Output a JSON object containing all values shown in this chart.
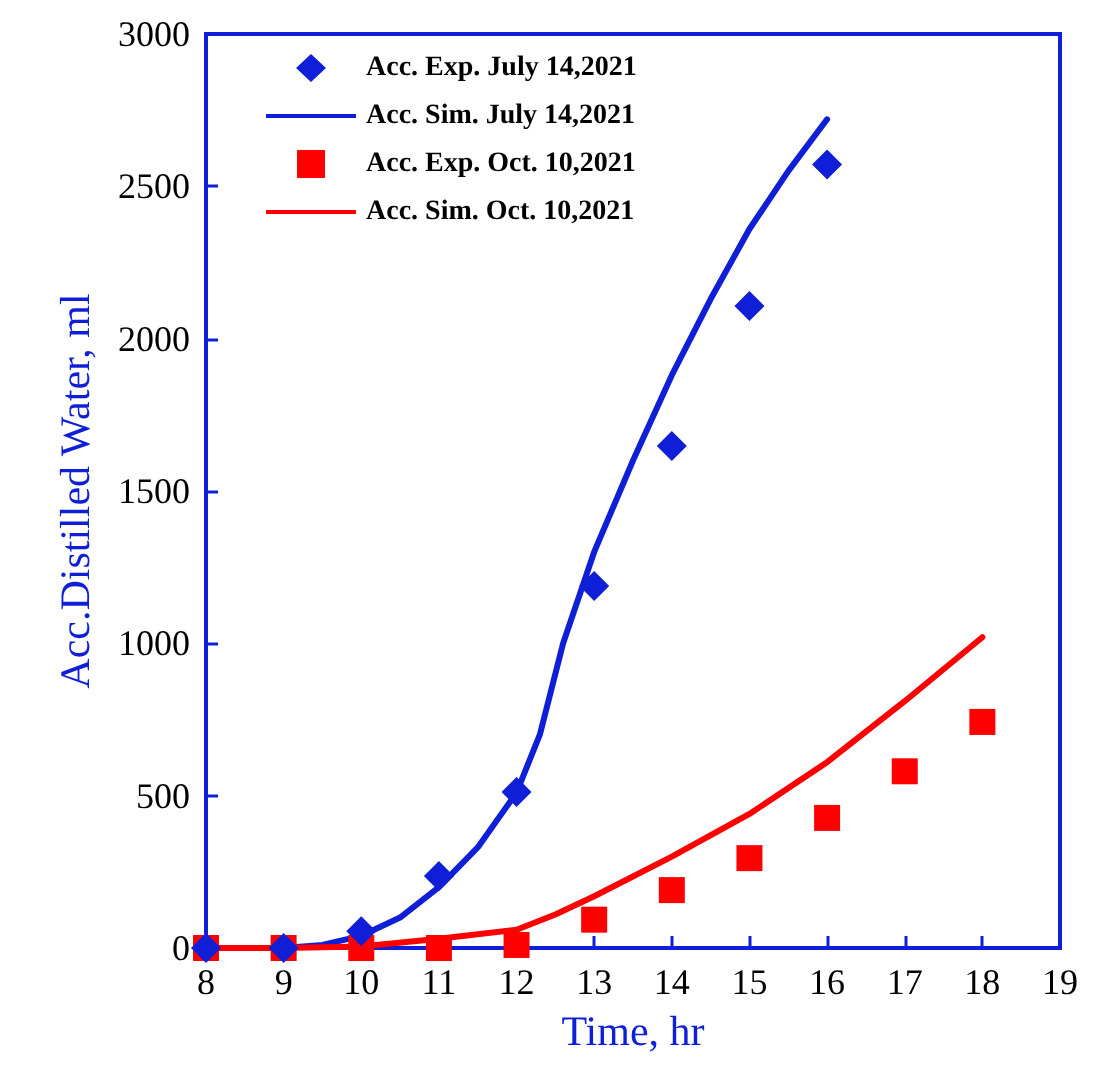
{
  "chart_data": {
    "type": "line",
    "xlabel": "Time, hr",
    "ylabel": "Acc.Distilled Water, ml",
    "xlim": [
      8,
      19
    ],
    "xticks": [
      8,
      9,
      10,
      11,
      12,
      13,
      14,
      15,
      16,
      17,
      18,
      19
    ],
    "ylim": [
      0,
      3000
    ],
    "yticks": [
      0,
      500,
      1000,
      1500,
      2000,
      2500,
      3000
    ],
    "grid": false,
    "legend": "top left",
    "series": [
      {
        "name": "Acc. Exp. July 14,2021",
        "type": "scatter",
        "marker": "diamond",
        "color": "#0f1fd8",
        "x": [
          8,
          9,
          10,
          11,
          12,
          13,
          14,
          15,
          16
        ],
        "values": [
          0,
          0,
          55,
          236,
          512,
          1188,
          1648,
          2107,
          2572
        ]
      },
      {
        "name": "Acc. Sim. July 14,2021",
        "type": "line",
        "marker": "none",
        "line_style": "solid",
        "color": "#0f1fd8",
        "x": [
          8,
          9,
          9.5,
          10,
          10.5,
          11,
          11.5,
          12,
          12.3,
          12.6,
          13,
          13.5,
          14,
          14.5,
          15,
          15.5,
          16
        ],
        "values": [
          0,
          0,
          10,
          40,
          100,
          200,
          330,
          510,
          700,
          1000,
          1300,
          1600,
          1880,
          2130,
          2360,
          2550,
          2720
        ]
      },
      {
        "name": "Acc. Exp. Oct. 10,2021",
        "type": "scatter",
        "marker": "square",
        "color": "#ff0000",
        "x": [
          8,
          9,
          10,
          11,
          12,
          13,
          14,
          15,
          16,
          17,
          18
        ],
        "values": [
          0,
          0,
          0,
          0,
          10,
          93,
          190,
          295,
          427,
          580,
          742
        ]
      },
      {
        "name": "Acc. Sim. Oct. 10,2021",
        "type": "line",
        "marker": "none",
        "line_style": "solid",
        "color": "#ff0000",
        "x": [
          8,
          9,
          10,
          11,
          12,
          12.5,
          13,
          14,
          15,
          16,
          17,
          18
        ],
        "values": [
          0,
          0,
          5,
          30,
          60,
          110,
          170,
          300,
          440,
          610,
          810,
          1020
        ]
      }
    ]
  }
}
